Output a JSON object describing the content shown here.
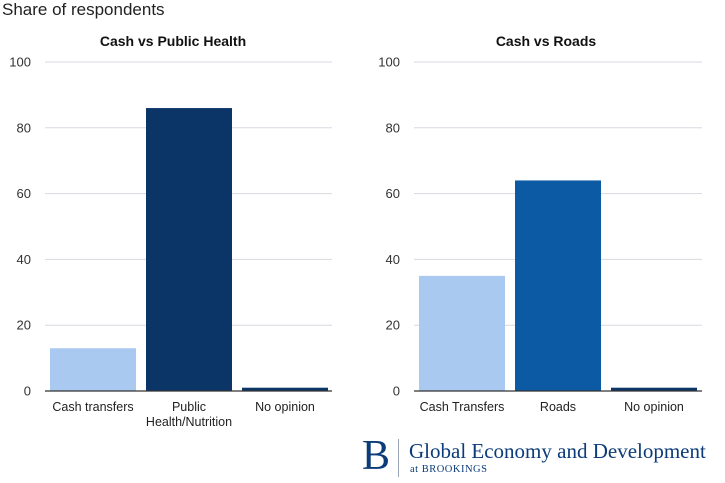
{
  "y_axis_title": "Share of respondents",
  "brand": {
    "logo_letter": "B",
    "name": "Global Economy and Development",
    "sub": "at BROOKINGS"
  },
  "chart_data": [
    {
      "type": "bar",
      "title": "Cash vs Public Health",
      "categories": [
        "Cash transfers",
        "Public Health/Nutrition",
        "No opinion"
      ],
      "category_lines": [
        [
          "Cash transfers"
        ],
        [
          "Public",
          "Health/Nutrition"
        ],
        [
          "No opinion"
        ]
      ],
      "values": [
        13,
        86,
        1
      ],
      "colors": [
        "#a9c9f0",
        "#0b3467",
        "#0b3467"
      ],
      "ylabel": "Share of respondents",
      "ylim": [
        0,
        100
      ],
      "yticks": [
        0,
        20,
        40,
        60,
        80,
        100
      ],
      "grid": true
    },
    {
      "type": "bar",
      "title": "Cash vs Roads",
      "categories": [
        "Cash Transfers",
        "Roads",
        "No opinion"
      ],
      "category_lines": [
        [
          "Cash Transfers"
        ],
        [
          "Roads"
        ],
        [
          "No opinion"
        ]
      ],
      "values": [
        35,
        64,
        1
      ],
      "colors": [
        "#a9c9f0",
        "#0b5aa3",
        "#0b3467"
      ],
      "ylabel": "Share of respondents",
      "ylim": [
        0,
        100
      ],
      "yticks": [
        0,
        20,
        40,
        60,
        80,
        100
      ],
      "grid": true
    }
  ]
}
